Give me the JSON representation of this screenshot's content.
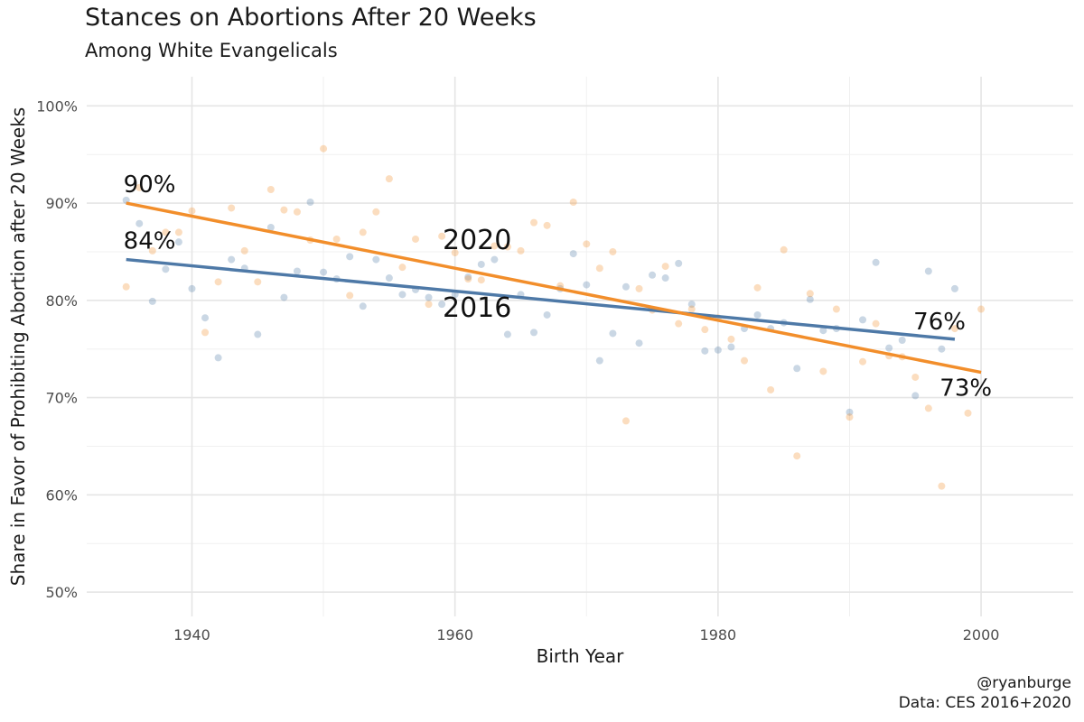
{
  "chart_data": {
    "type": "scatter",
    "title": "Stances on Abortions After 20 Weeks",
    "subtitle": "Among White Evangelicals",
    "xlabel": "Birth Year",
    "ylabel": "Share in Favor of Prohibiting Abortion after 20 Weeks",
    "xlim": [
      1932,
      2007
    ],
    "ylim": [
      0.475,
      1.03
    ],
    "x_ticks": [
      1940,
      1960,
      1980,
      2000
    ],
    "x_tick_labels": [
      "1940",
      "1960",
      "1980",
      "2000"
    ],
    "y_ticks": [
      0.5,
      0.6,
      0.7,
      0.8,
      0.9,
      1.0
    ],
    "y_tick_labels": [
      "50%",
      "60%",
      "70%",
      "80%",
      "90%",
      "100%"
    ],
    "grid": true,
    "caption": [
      "@ryanburge",
      "Data: CES 2016+2020"
    ],
    "series": [
      {
        "name": "2016",
        "color": "#4e79a7",
        "points": [
          [
            1935,
            0.903
          ],
          [
            1936,
            0.879
          ],
          [
            1937,
            0.799
          ],
          [
            1938,
            0.832
          ],
          [
            1939,
            0.86
          ],
          [
            1940,
            0.812
          ],
          [
            1941,
            0.782
          ],
          [
            1942,
            0.741
          ],
          [
            1943,
            0.842
          ],
          [
            1944,
            0.833
          ],
          [
            1945,
            0.765
          ],
          [
            1946,
            0.875
          ],
          [
            1947,
            0.803
          ],
          [
            1948,
            0.83
          ],
          [
            1949,
            0.901
          ],
          [
            1950,
            0.829
          ],
          [
            1951,
            0.822
          ],
          [
            1952,
            0.845
          ],
          [
            1953,
            0.794
          ],
          [
            1954,
            0.842
          ],
          [
            1955,
            0.823
          ],
          [
            1956,
            0.806
          ],
          [
            1957,
            0.811
          ],
          [
            1958,
            0.803
          ],
          [
            1959,
            0.796
          ],
          [
            1960,
            0.806
          ],
          [
            1961,
            0.824
          ],
          [
            1962,
            0.837
          ],
          [
            1963,
            0.842
          ],
          [
            1964,
            0.765
          ],
          [
            1965,
            0.806
          ],
          [
            1966,
            0.767
          ],
          [
            1967,
            0.785
          ],
          [
            1968,
            0.812
          ],
          [
            1969,
            0.848
          ],
          [
            1970,
            0.816
          ],
          [
            1971,
            0.738
          ],
          [
            1972,
            0.766
          ],
          [
            1973,
            0.814
          ],
          [
            1974,
            0.756
          ],
          [
            1975,
            0.826
          ],
          [
            1976,
            0.823
          ],
          [
            1977,
            0.838
          ],
          [
            1978,
            0.796
          ],
          [
            1979,
            0.748
          ],
          [
            1980,
            0.749
          ],
          [
            1981,
            0.752
          ],
          [
            1982,
            0.771
          ],
          [
            1983,
            0.785
          ],
          [
            1984,
            0.771
          ],
          [
            1985,
            0.777
          ],
          [
            1986,
            0.73
          ],
          [
            1987,
            0.801
          ],
          [
            1988,
            0.769
          ],
          [
            1989,
            0.771
          ],
          [
            1990,
            0.685
          ],
          [
            1991,
            0.78
          ],
          [
            1992,
            0.839
          ],
          [
            1993,
            0.751
          ],
          [
            1994,
            0.759
          ],
          [
            1995,
            0.702
          ],
          [
            1996,
            0.83
          ],
          [
            1997,
            0.75
          ],
          [
            1998,
            0.812
          ]
        ],
        "trend": [
          [
            1935,
            0.842
          ],
          [
            1998,
            0.76
          ]
        ],
        "series_label": "2016",
        "start_label": "84%",
        "end_label": "76%"
      },
      {
        "name": "2020",
        "color": "#f28e2b",
        "points": [
          [
            1935,
            0.814
          ],
          [
            1936,
            0.916
          ],
          [
            1937,
            0.851
          ],
          [
            1938,
            0.87
          ],
          [
            1939,
            0.87
          ],
          [
            1940,
            0.892
          ],
          [
            1941,
            0.767
          ],
          [
            1942,
            0.819
          ],
          [
            1943,
            0.895
          ],
          [
            1944,
            0.851
          ],
          [
            1945,
            0.819
          ],
          [
            1946,
            0.914
          ],
          [
            1947,
            0.893
          ],
          [
            1948,
            0.891
          ],
          [
            1949,
            0.862
          ],
          [
            1950,
            0.956
          ],
          [
            1951,
            0.863
          ],
          [
            1952,
            0.805
          ],
          [
            1953,
            0.87
          ],
          [
            1954,
            0.891
          ],
          [
            1955,
            0.925
          ],
          [
            1956,
            0.834
          ],
          [
            1957,
            0.863
          ],
          [
            1958,
            0.796
          ],
          [
            1959,
            0.866
          ],
          [
            1960,
            0.849
          ],
          [
            1961,
            0.822
          ],
          [
            1962,
            0.821
          ],
          [
            1963,
            0.856
          ],
          [
            1964,
            0.855
          ],
          [
            1965,
            0.851
          ],
          [
            1966,
            0.88
          ],
          [
            1967,
            0.877
          ],
          [
            1968,
            0.815
          ],
          [
            1969,
            0.901
          ],
          [
            1970,
            0.858
          ],
          [
            1971,
            0.833
          ],
          [
            1972,
            0.85
          ],
          [
            1973,
            0.676
          ],
          [
            1974,
            0.812
          ],
          [
            1975,
            0.79
          ],
          [
            1976,
            0.835
          ],
          [
            1977,
            0.776
          ],
          [
            1978,
            0.791
          ],
          [
            1979,
            0.77
          ],
          [
            1980,
            0.782
          ],
          [
            1981,
            0.76
          ],
          [
            1982,
            0.738
          ],
          [
            1983,
            0.813
          ],
          [
            1984,
            0.708
          ],
          [
            1985,
            0.852
          ],
          [
            1986,
            0.64
          ],
          [
            1987,
            0.807
          ],
          [
            1988,
            0.727
          ],
          [
            1989,
            0.791
          ],
          [
            1990,
            0.68
          ],
          [
            1991,
            0.737
          ],
          [
            1992,
            0.776
          ],
          [
            1993,
            0.743
          ],
          [
            1994,
            0.742
          ],
          [
            1995,
            0.721
          ],
          [
            1996,
            0.689
          ],
          [
            1997,
            0.609
          ],
          [
            1998,
            0.771
          ],
          [
            1999,
            0.684
          ],
          [
            2000,
            0.791
          ]
        ],
        "trend": [
          [
            1935,
            0.9
          ],
          [
            2000,
            0.726
          ]
        ],
        "series_label": "2020",
        "start_label": "90%",
        "end_label": "73%"
      }
    ]
  }
}
